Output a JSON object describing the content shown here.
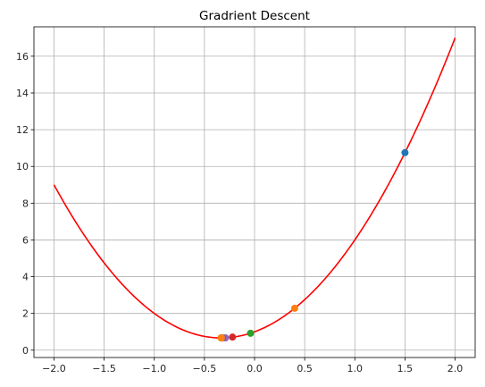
{
  "chart_data": {
    "type": "line",
    "title": "Gradrient Descent",
    "xlabel": "",
    "ylabel": "",
    "xlim": [
      -2.2,
      2.2
    ],
    "ylim": [
      -0.4,
      17.6
    ],
    "grid": true,
    "x_ticks": [
      -2.0,
      -1.5,
      -1.0,
      -0.5,
      0.0,
      0.5,
      1.0,
      1.5,
      2.0
    ],
    "x_tick_labels": [
      "−2.0",
      "−1.5",
      "−1.0",
      "−0.5",
      "0.0",
      "0.5",
      "1.0",
      "1.5",
      "2.0"
    ],
    "y_ticks": [
      0,
      2,
      4,
      6,
      8,
      10,
      12,
      14,
      16
    ],
    "y_tick_labels": [
      "0",
      "2",
      "4",
      "6",
      "8",
      "10",
      "12",
      "14",
      "16"
    ],
    "curve": {
      "color": "#ff0000",
      "x_range": [
        -2.0,
        2.0
      ],
      "function": "3x^2 + 2x + 1"
    },
    "points": [
      {
        "x": 1.5,
        "y": 10.75,
        "color": "#1f77b4"
      },
      {
        "x": 0.4,
        "y": 2.28,
        "color": "#ff7f0e"
      },
      {
        "x": -0.04,
        "y": 0.92,
        "color": "#2ca02c"
      },
      {
        "x": -0.22,
        "y": 0.71,
        "color": "#d62728"
      },
      {
        "x": -0.29,
        "y": 0.67,
        "color": "#9467bd"
      },
      {
        "x": -0.32,
        "y": 0.67,
        "color": "#8c564b"
      },
      {
        "x": -0.33,
        "y": 0.67,
        "color": "#e377c2"
      },
      {
        "x": -0.333,
        "y": 0.667,
        "color": "#7f7f7f"
      },
      {
        "x": -0.3333,
        "y": 0.6667,
        "color": "#bcbd22"
      },
      {
        "x": -0.33333,
        "y": 0.66667,
        "color": "#ff7f0e"
      }
    ]
  }
}
